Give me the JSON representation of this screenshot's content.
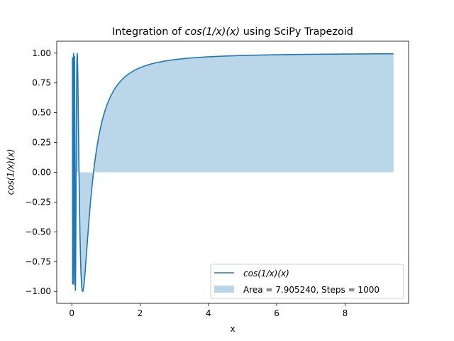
{
  "chart_data": {
    "type": "line",
    "title": "Integration of cos(1/x)(x) using SciPy Trapezoid",
    "title_prefix": "Integration of ",
    "title_math": "cos(1/x)(x)",
    "title_suffix": " using SciPy Trapezoid",
    "xlabel": "x",
    "ylabel": "cos(1/x)(x)",
    "xlim": [
      -0.44,
      9.86
    ],
    "ylim": [
      -1.1,
      1.1
    ],
    "x_ticks": [
      0,
      2,
      4,
      6,
      8
    ],
    "x_tick_labels": [
      "0",
      "2",
      "4",
      "6",
      "8"
    ],
    "y_ticks": [
      -1.0,
      -0.75,
      -0.5,
      -0.25,
      0.0,
      0.25,
      0.5,
      0.75,
      1.0
    ],
    "y_tick_labels": [
      "−1.00",
      "−0.75",
      "−0.50",
      "−0.25",
      "0.00",
      "0.25",
      "0.50",
      "0.75",
      "1.00"
    ],
    "series": [
      {
        "name": "cos(1/x)(x)",
        "function": "cos(1/x)",
        "x_range": [
          0.02,
          9.42
        ],
        "samples": 2000,
        "color": "#1f77b4"
      }
    ],
    "fill": {
      "label": "Area = 7.905240, Steps = 1000",
      "color": "#1f77b4",
      "alpha": 0.3,
      "to": 0
    },
    "legend": {
      "position": "bottom-right",
      "entries": [
        "cos(1/x)(x)",
        "Area = 7.905240, Steps = 1000"
      ]
    },
    "grid": false
  }
}
